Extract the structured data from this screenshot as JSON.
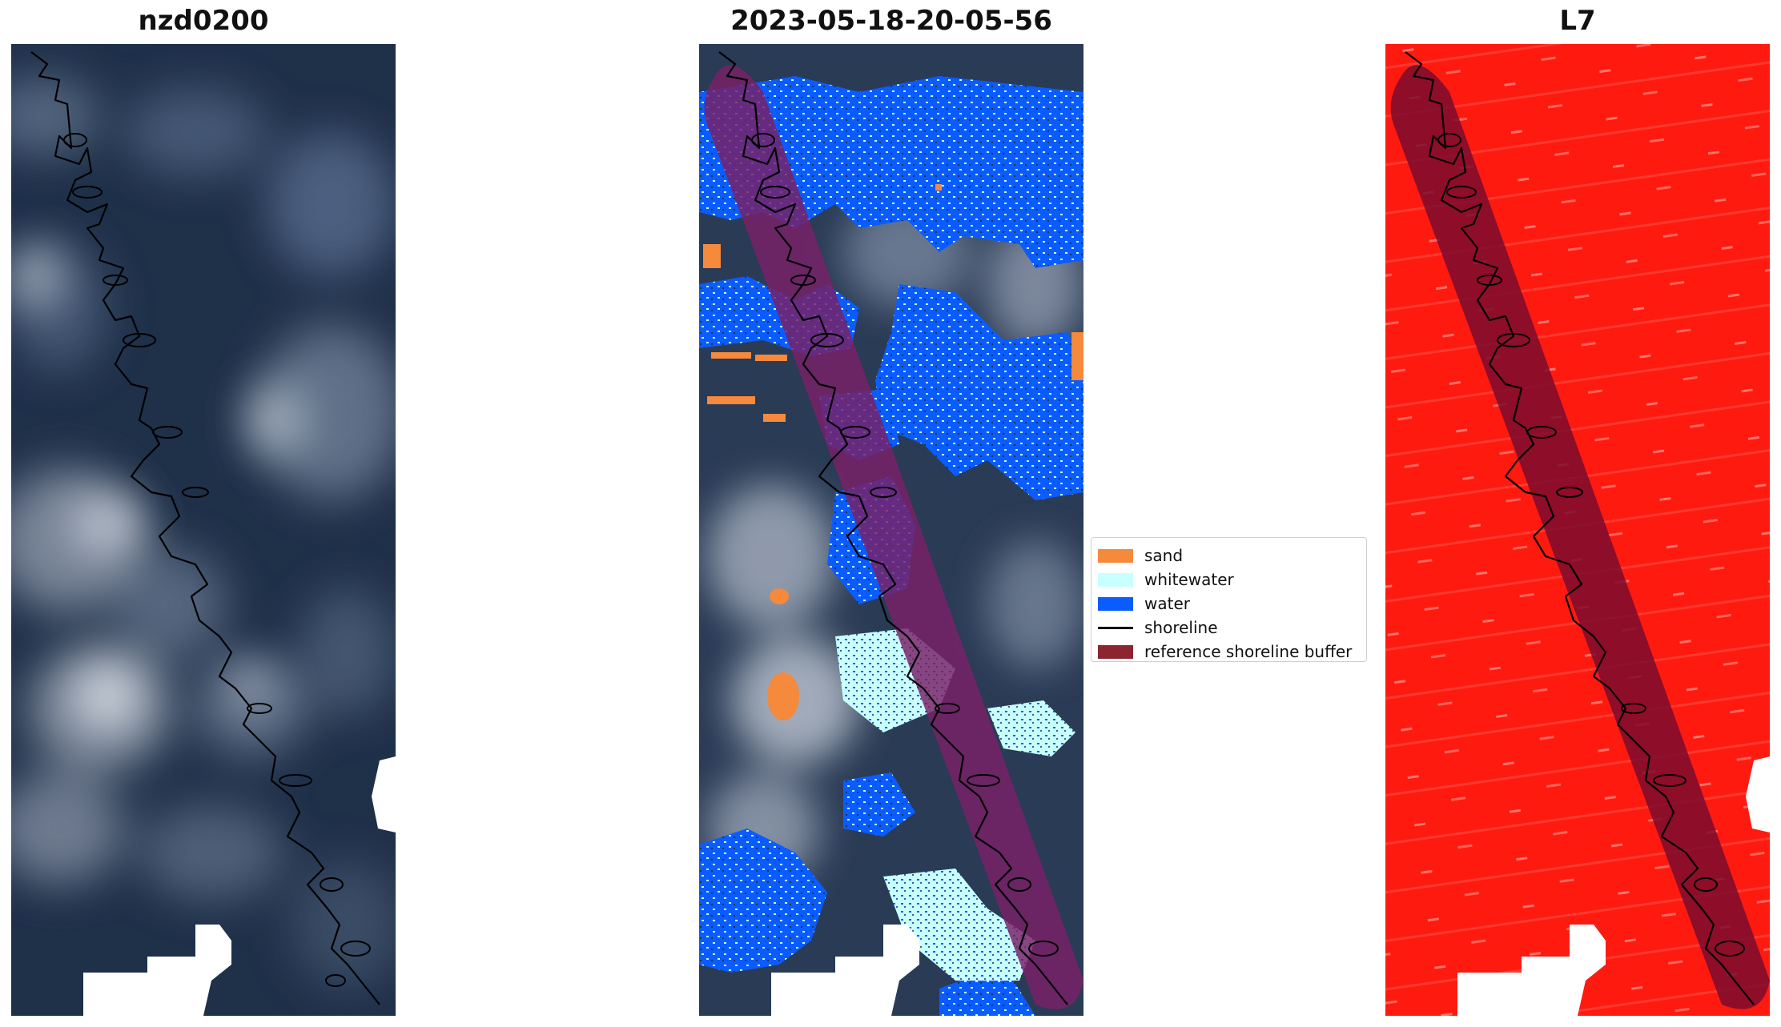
{
  "panels": [
    {
      "title": "nzd0200"
    },
    {
      "title": "2023-05-18-20-05-56"
    },
    {
      "title": "L7"
    }
  ],
  "legend": {
    "items": [
      {
        "label": "sand",
        "color": "#f5893c",
        "kind": "patch"
      },
      {
        "label": "whitewater",
        "color": "#c8ffff",
        "kind": "patch"
      },
      {
        "label": "water",
        "color": "#0a5cff",
        "kind": "patch"
      },
      {
        "label": "shoreline",
        "color": "#000000",
        "kind": "line"
      },
      {
        "label": "reference shoreline buffer",
        "color": "#8b2530",
        "kind": "patch"
      }
    ]
  },
  "colors": {
    "sky_dark": "#1c2d44",
    "sky_mid": "#3a4f6c",
    "cloud": "#c9d0da",
    "l7_red": "#ff1a10",
    "buffer_dark": "#7a0c2e",
    "buffer_purple": "#6a2090",
    "shoreline": "#000000"
  }
}
